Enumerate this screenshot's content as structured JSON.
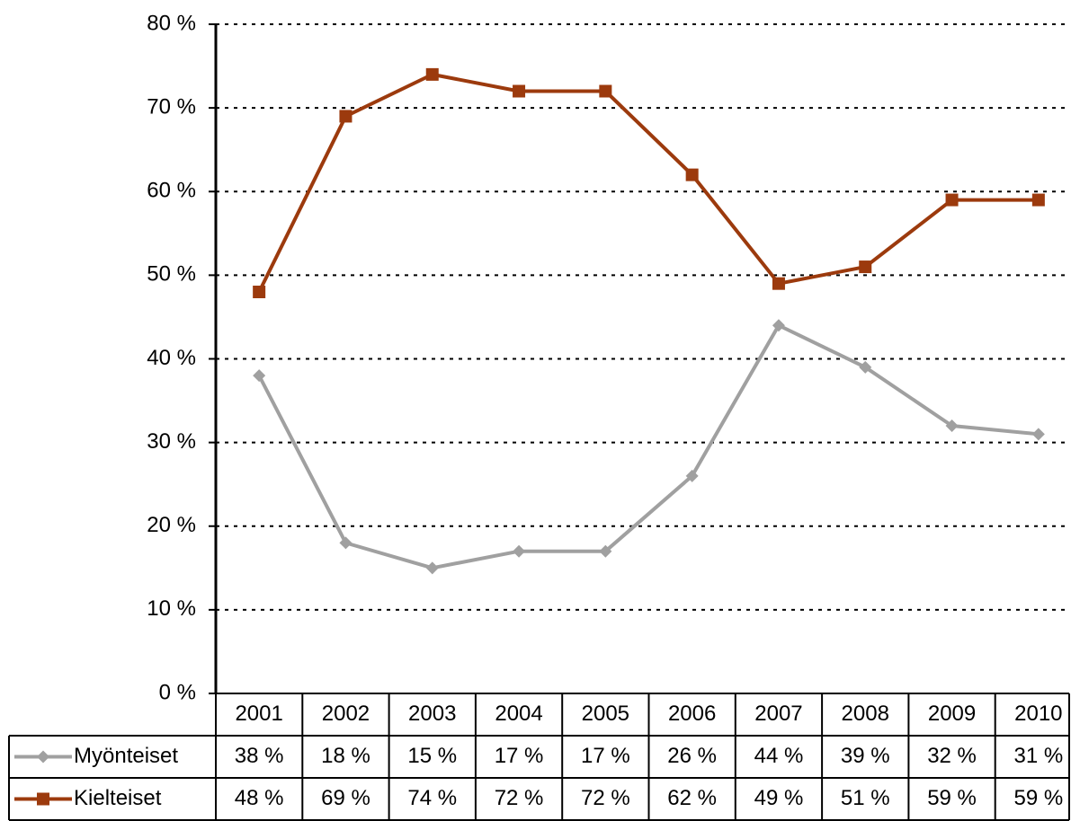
{
  "chart_data": {
    "type": "line",
    "categories": [
      "2001",
      "2002",
      "2003",
      "2004",
      "2005",
      "2006",
      "2007",
      "2008",
      "2009",
      "2010"
    ],
    "series": [
      {
        "name": "Myönteiset",
        "color": "#a0a0a0",
        "marker": "diamond",
        "values": [
          38,
          18,
          15,
          17,
          17,
          26,
          44,
          39,
          32,
          31
        ],
        "value_labels": [
          "38 %",
          "18 %",
          "15 %",
          "17 %",
          "17 %",
          "26 %",
          "44 %",
          "39 %",
          "32 %",
          "31 %"
        ]
      },
      {
        "name": "Kielteiset",
        "color": "#9c3a0d",
        "marker": "square",
        "values": [
          48,
          69,
          74,
          72,
          72,
          62,
          49,
          51,
          59,
          59
        ],
        "value_labels": [
          "48 %",
          "69 %",
          "74 %",
          "72 %",
          "72 %",
          "62 %",
          "49 %",
          "51 %",
          "59 %",
          "59 %"
        ]
      }
    ],
    "ylim": [
      0,
      80
    ],
    "yticks": [
      {
        "value": 0,
        "label": "0 %"
      },
      {
        "value": 10,
        "label": "10 %"
      },
      {
        "value": 20,
        "label": "20 %"
      },
      {
        "value": 30,
        "label": "30 %"
      },
      {
        "value": 40,
        "label": "40 %"
      },
      {
        "value": 50,
        "label": "50 %"
      },
      {
        "value": 60,
        "label": "60 %"
      },
      {
        "value": 70,
        "label": "70 %"
      },
      {
        "value": 80,
        "label": "80 %"
      }
    ],
    "grid": true
  }
}
